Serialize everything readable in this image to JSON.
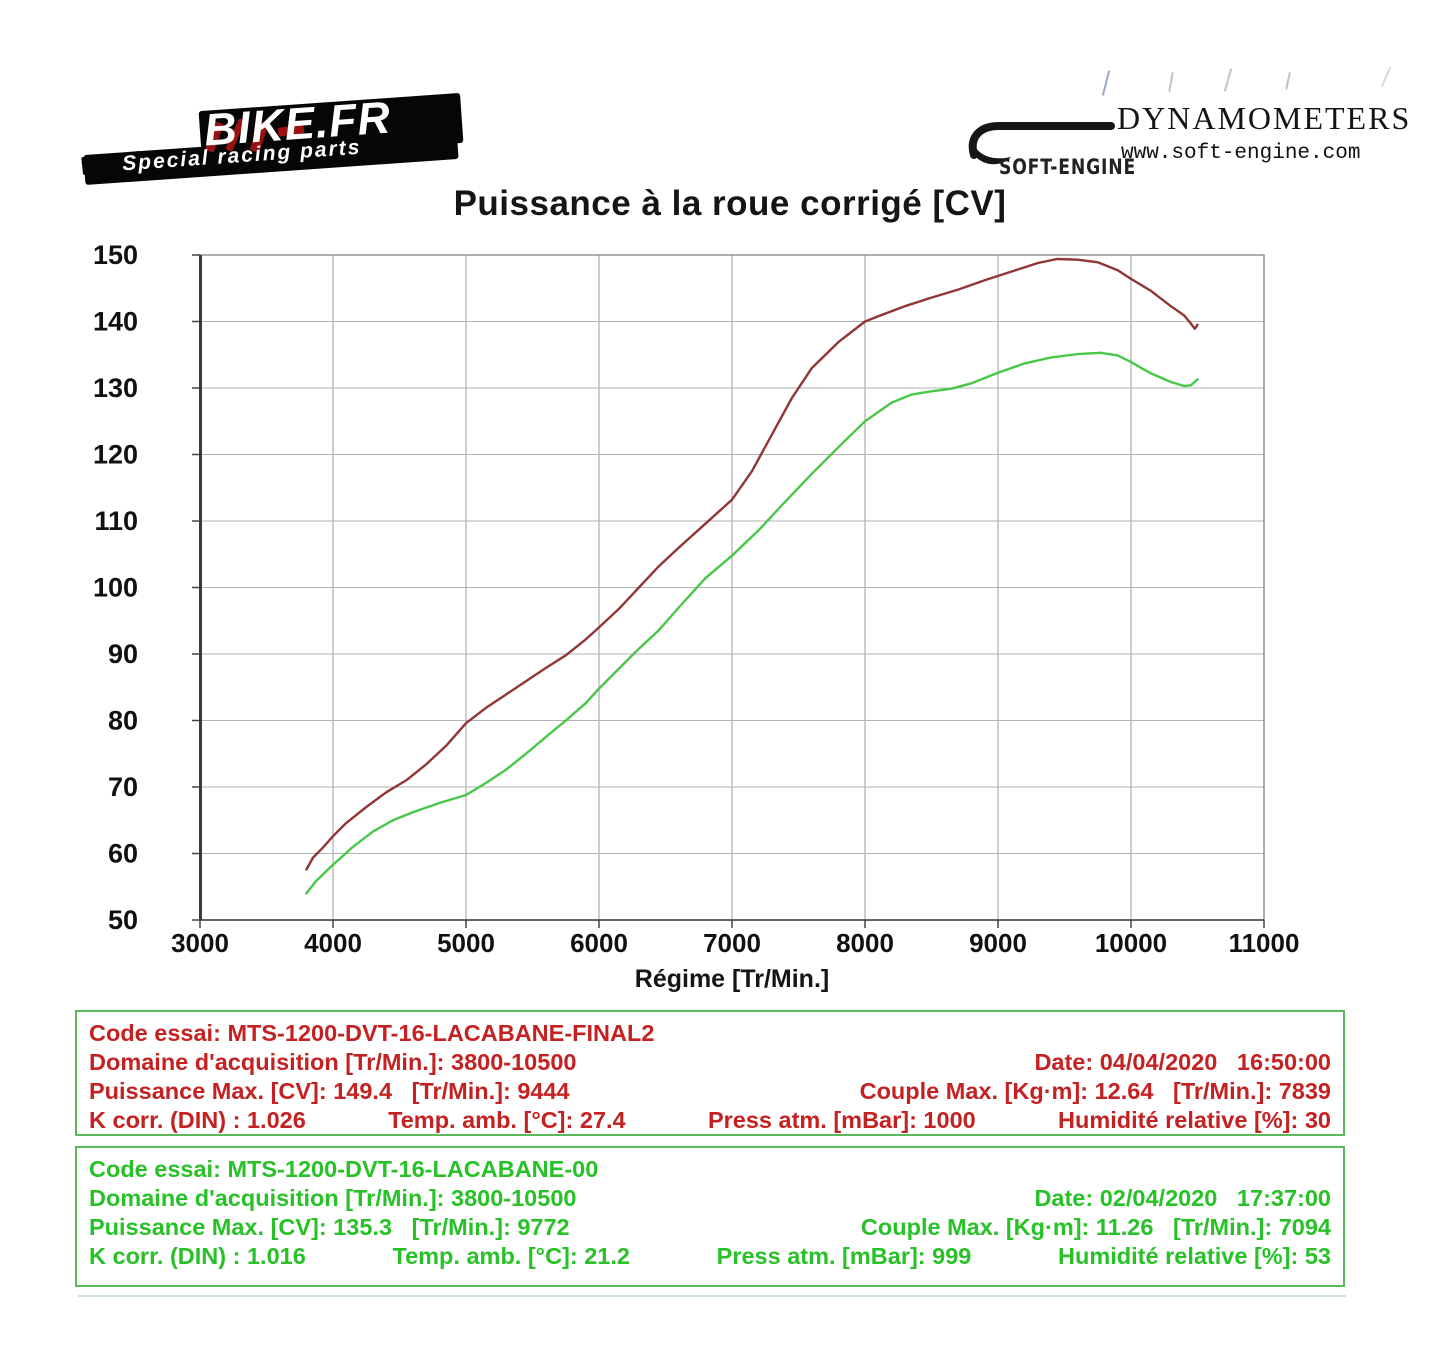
{
  "header": {
    "bike_logo": {
      "brand": "BIKE.FR",
      "tagline": "Special racing parts"
    },
    "softengine": {
      "brand_small": "SOFT-ENGINE",
      "brand_large": "DYNAMOMETERS",
      "website": "www.soft-engine.com"
    }
  },
  "chart_data": {
    "type": "line",
    "title": "Puissance à la roue corrigé [CV]",
    "xlabel": "Régime [Tr/Min.]",
    "ylabel": "",
    "xlim": [
      3000,
      11000
    ],
    "ylim": [
      50,
      150
    ],
    "x_ticks": [
      3000,
      4000,
      5000,
      6000,
      7000,
      8000,
      9000,
      10000,
      11000
    ],
    "y_ticks": [
      50,
      60,
      70,
      80,
      90,
      100,
      110,
      120,
      130,
      140,
      150
    ],
    "grid": true,
    "legend_position": "none",
    "series": [
      {
        "name": "MTS-1200-DVT-16-LACABANE-FINAL2",
        "color": "#8b2b2b",
        "points": [
          [
            3800,
            57.6
          ],
          [
            3850,
            59.4
          ],
          [
            3920,
            60.8
          ],
          [
            4000,
            62.6
          ],
          [
            4100,
            64.6
          ],
          [
            4250,
            67.0
          ],
          [
            4400,
            69.2
          ],
          [
            4550,
            71.0
          ],
          [
            4700,
            73.4
          ],
          [
            4850,
            76.2
          ],
          [
            5000,
            79.6
          ],
          [
            5150,
            81.9
          ],
          [
            5300,
            83.9
          ],
          [
            5450,
            85.9
          ],
          [
            5600,
            87.9
          ],
          [
            5750,
            89.8
          ],
          [
            5900,
            92.2
          ],
          [
            6000,
            94.0
          ],
          [
            6150,
            96.8
          ],
          [
            6300,
            100.0
          ],
          [
            6450,
            103.2
          ],
          [
            6600,
            106.0
          ],
          [
            6800,
            109.6
          ],
          [
            7000,
            113.2
          ],
          [
            7150,
            117.5
          ],
          [
            7300,
            123.0
          ],
          [
            7450,
            128.5
          ],
          [
            7600,
            133.0
          ],
          [
            7800,
            136.9
          ],
          [
            8000,
            140.0
          ],
          [
            8100,
            140.8
          ],
          [
            8300,
            142.3
          ],
          [
            8500,
            143.6
          ],
          [
            8700,
            144.8
          ],
          [
            8900,
            146.2
          ],
          [
            9100,
            147.5
          ],
          [
            9300,
            148.8
          ],
          [
            9444,
            149.4
          ],
          [
            9600,
            149.3
          ],
          [
            9750,
            148.9
          ],
          [
            9900,
            147.7
          ],
          [
            10000,
            146.4
          ],
          [
            10150,
            144.6
          ],
          [
            10300,
            142.3
          ],
          [
            10400,
            140.9
          ],
          [
            10450,
            139.7
          ],
          [
            10480,
            138.9
          ],
          [
            10500,
            139.5
          ]
        ]
      },
      {
        "name": "MTS-1200-DVT-16-LACABANE-00",
        "color": "#3ec43e",
        "points": [
          [
            3800,
            54.0
          ],
          [
            3870,
            55.8
          ],
          [
            4000,
            58.3
          ],
          [
            4150,
            61.0
          ],
          [
            4300,
            63.3
          ],
          [
            4450,
            65.0
          ],
          [
            4600,
            66.2
          ],
          [
            4800,
            67.6
          ],
          [
            5000,
            68.8
          ],
          [
            5150,
            70.6
          ],
          [
            5300,
            72.6
          ],
          [
            5450,
            75.0
          ],
          [
            5600,
            77.5
          ],
          [
            5750,
            80.0
          ],
          [
            5900,
            82.6
          ],
          [
            6000,
            84.8
          ],
          [
            6150,
            87.8
          ],
          [
            6300,
            90.8
          ],
          [
            6450,
            93.6
          ],
          [
            6600,
            97.0
          ],
          [
            6800,
            101.4
          ],
          [
            7000,
            104.8
          ],
          [
            7200,
            108.6
          ],
          [
            7400,
            112.9
          ],
          [
            7600,
            117.1
          ],
          [
            7800,
            121.1
          ],
          [
            8000,
            125.0
          ],
          [
            8200,
            127.8
          ],
          [
            8350,
            129.0
          ],
          [
            8500,
            129.5
          ],
          [
            8650,
            129.9
          ],
          [
            8800,
            130.7
          ],
          [
            9000,
            132.3
          ],
          [
            9200,
            133.7
          ],
          [
            9400,
            134.6
          ],
          [
            9600,
            135.1
          ],
          [
            9772,
            135.3
          ],
          [
            9900,
            134.9
          ],
          [
            10000,
            133.9
          ],
          [
            10150,
            132.2
          ],
          [
            10300,
            130.9
          ],
          [
            10400,
            130.3
          ],
          [
            10450,
            130.4
          ],
          [
            10500,
            131.3
          ]
        ]
      }
    ]
  },
  "info_boxes": [
    {
      "text_color": "#c42222",
      "border_color": "#5cb85c",
      "row1": "Code essai: MTS-1200-DVT-16-LACABANE-FINAL2",
      "row2_left": "Domaine d'acquisition [Tr/Min.]: 3800-10500",
      "row2_right": "Date: 04/04/2020   16:50:00",
      "row3_left": "Puissance Max. [CV]: 149.4   [Tr/Min.]: 9444",
      "row3_right": "Couple Max. [Kg·m]: 12.64   [Tr/Min.]: 7839",
      "row4_cells": [
        "K corr. (DIN) : 1.026",
        "Temp. amb. [°C]: 27.4",
        "Press atm. [mBar]: 1000",
        "Humidité relative [%]: 30"
      ]
    },
    {
      "text_color": "#28c128",
      "border_color": "#5cb85c",
      "row1": "Code essai: MTS-1200-DVT-16-LACABANE-00",
      "row2_left": "Domaine d'acquisition [Tr/Min.]: 3800-10500",
      "row2_right": "Date: 02/04/2020   17:37:00",
      "row3_left": "Puissance Max. [CV]: 135.3   [Tr/Min.]: 9772",
      "row3_right": "Couple Max. [Kg·m]: 11.26   [Tr/Min.]: 7094",
      "row4_cells": [
        "K corr. (DIN) : 1.016",
        "Temp. amb. [°C]: 21.2",
        "Press atm. [mBar]: 999",
        "Humidité relative [%]: 53"
      ]
    }
  ]
}
